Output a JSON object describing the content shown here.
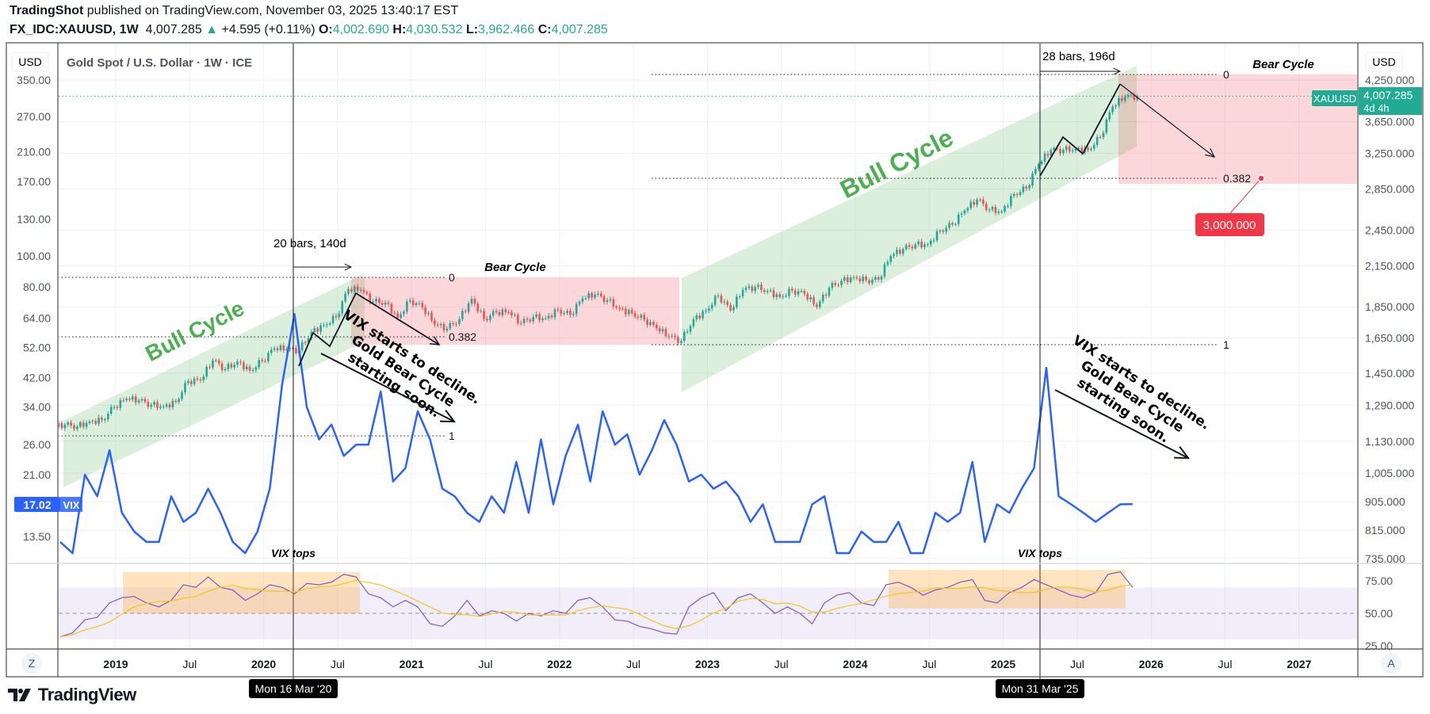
{
  "header": {
    "publisher": "TradingShot",
    "published_text": "published on TradingView.com, November 03, 2025 13:40:17 EST",
    "symbol": "FX_IDC:XAUUSD, 1W",
    "last": "4,007.285",
    "change": "+4.595 (+0.11%)",
    "o_label": "O:",
    "o": "4,002.690",
    "h_label": "H:",
    "h": "4,030.532",
    "l_label": "L:",
    "l": "3,962.466",
    "c_label": "C:",
    "c": "4,007.285"
  },
  "pane": {
    "title": "Gold Spot / U.S. Dollar · 1W · ICE",
    "currency_left": "USD",
    "currency_right": "USD"
  },
  "price_label": {
    "symbol": "XAUUSD",
    "value": "4,007.285",
    "countdown": "4d 4h"
  },
  "vix_label": {
    "value": "17.02",
    "name": "VIX"
  },
  "target_label": "3,000.000",
  "crosshair_dates": [
    "Mon 16 Mar '20",
    "Mon 31 Mar '25"
  ],
  "annotations": {
    "bull_cycle": "Bull Cycle",
    "bear_cycle": "Bear Cycle",
    "vix_tops": "VIX tops",
    "bars_1": "20 bars, 140d",
    "bars_2": "28 bars, 196d",
    "vix_note": [
      "VIX starts to decline.",
      "Gold Bear Cycle",
      "starting soon."
    ],
    "fib_levels": [
      "0",
      "0.382",
      "1"
    ]
  },
  "buttons": {
    "z": "Z",
    "a": "A"
  },
  "footer": {
    "brand": "TradingView"
  },
  "colors": {
    "up": "#26a69a",
    "down": "#ef5350",
    "vix": "#2962ff",
    "rsi": "#7e57c2",
    "rsi_ma": "#f5c518",
    "bull_zone": "#4caf50",
    "bear_zone": "#f23645",
    "price_tag": "#22ab94",
    "target_tag": "#f23645"
  },
  "chart_data": {
    "type": "line",
    "gold_style": "candlestick",
    "x": [
      "2018-08",
      "2018-09",
      "2018-10",
      "2018-11",
      "2018-12",
      "2019-01",
      "2019-02",
      "2019-03",
      "2019-04",
      "2019-05",
      "2019-06",
      "2019-07",
      "2019-08",
      "2019-09",
      "2019-10",
      "2019-11",
      "2019-12",
      "2020-01",
      "2020-02",
      "2020-03",
      "2020-04",
      "2020-05",
      "2020-06",
      "2020-07",
      "2020-08",
      "2020-09",
      "2020-10",
      "2020-11",
      "2020-12",
      "2021-01",
      "2021-02",
      "2021-03",
      "2021-04",
      "2021-05",
      "2021-06",
      "2021-07",
      "2021-08",
      "2021-09",
      "2021-10",
      "2021-11",
      "2021-12",
      "2022-01",
      "2022-02",
      "2022-03",
      "2022-04",
      "2022-05",
      "2022-06",
      "2022-07",
      "2022-08",
      "2022-09",
      "2022-10",
      "2022-11",
      "2022-12",
      "2023-01",
      "2023-02",
      "2023-03",
      "2023-04",
      "2023-05",
      "2023-06",
      "2023-07",
      "2023-08",
      "2023-09",
      "2023-10",
      "2023-11",
      "2023-12",
      "2024-01",
      "2024-02",
      "2024-03",
      "2024-04",
      "2024-05",
      "2024-06",
      "2024-07",
      "2024-08",
      "2024-09",
      "2024-10",
      "2024-11",
      "2024-12",
      "2025-01",
      "2025-02",
      "2025-03",
      "2025-04",
      "2025-05",
      "2025-06",
      "2025-07",
      "2025-08",
      "2025-09",
      "2025-10",
      "2025-11"
    ],
    "series": [
      {
        "name": "XAUUSD",
        "axis": "right",
        "values": [
          1201,
          1192,
          1215,
          1222,
          1282,
          1321,
          1313,
          1292,
          1284,
          1305,
          1409,
          1413,
          1520,
          1472,
          1513,
          1464,
          1517,
          1589,
          1585,
          1577,
          1687,
          1730,
          1781,
          1975,
          1968,
          1886,
          1879,
          1776,
          1895,
          1847,
          1734,
          1708,
          1769,
          1906,
          1770,
          1814,
          1813,
          1743,
          1783,
          1774,
          1829,
          1796,
          1908,
          1937,
          1896,
          1837,
          1807,
          1765,
          1711,
          1660,
          1633,
          1768,
          1824,
          1928,
          1826,
          1969,
          1990,
          1962,
          1919,
          1965,
          1940,
          1849,
          1983,
          2036,
          2063,
          2039,
          2044,
          2230,
          2286,
          2327,
          2326,
          2447,
          2503,
          2634,
          2744,
          2643,
          2625,
          2798,
          2858,
          3124,
          3289,
          3289,
          3303,
          3290,
          3448,
          3858,
          4000,
          4007.285
        ]
      },
      {
        "name": "VIX",
        "axis": "left",
        "values": [
          13,
          12,
          21,
          18,
          25,
          16,
          14,
          13,
          13,
          18,
          15,
          16,
          19,
          16,
          13,
          12,
          14,
          19,
          40,
          66,
          34,
          27,
          30,
          24,
          26,
          26,
          38,
          20,
          22,
          33,
          27,
          19,
          18,
          16,
          15,
          18,
          16,
          23,
          16,
          27,
          17,
          24,
          30,
          20,
          33,
          26,
          28,
          21,
          25,
          31,
          26,
          20,
          21,
          19,
          20,
          18,
          15,
          17,
          13,
          13,
          13,
          17,
          18,
          12,
          12,
          14,
          13,
          13,
          15,
          12,
          12,
          16,
          15,
          16,
          23,
          13,
          17,
          16,
          19,
          22,
          45,
          18,
          17,
          16,
          15,
          16,
          17,
          17.02
        ]
      },
      {
        "axis": "rsi",
        "values": [
          32,
          35,
          45,
          47,
          58,
          62,
          63,
          58,
          55,
          60,
          72,
          70,
          78,
          70,
          68,
          60,
          65,
          72,
          70,
          65,
          73,
          72,
          74,
          80,
          78,
          65,
          62,
          55,
          60,
          55,
          42,
          40,
          48,
          60,
          48,
          52,
          50,
          44,
          50,
          48,
          52,
          50,
          60,
          62,
          55,
          45,
          44,
          40,
          38,
          35,
          34,
          55,
          62,
          66,
          52,
          62,
          65,
          58,
          50,
          55,
          50,
          42,
          58,
          64,
          66,
          58,
          56,
          72,
          74,
          70,
          64,
          68,
          70,
          74,
          76,
          60,
          58,
          66,
          70,
          76,
          72,
          68,
          64,
          62,
          66,
          80,
          82,
          70
        ]
      }
    ],
    "right_axis_ticks": [
      "4,250.000",
      "3,650.000",
      "3,250.000",
      "2,850.000",
      "2,450.000",
      "2,150.000",
      "1,850.000",
      "1,650.000",
      "1,450.000",
      "1,290.000",
      "1,130.000",
      "1,005.000",
      "905.000",
      "815.000",
      "735.000"
    ],
    "left_axis_ticks": [
      "350.00",
      "270.00",
      "210.00",
      "170.00",
      "130.00",
      "100.00",
      "80.00",
      "64.00",
      "52.00",
      "42.00",
      "34.00",
      "26.00",
      "21.00",
      "13.50"
    ],
    "rsi_axis_ticks": [
      "75.00",
      "50.00",
      "25.00"
    ],
    "x_axis_ticks": [
      "2019",
      "Jul",
      "2020",
      "Jul",
      "2021",
      "Jul",
      "2022",
      "Jul",
      "2023",
      "Jul",
      "2024",
      "Jul",
      "2025",
      "Jul",
      "2026",
      "Jul",
      "2027"
    ],
    "right_scale": "log",
    "left_scale": "log",
    "grid": true
  }
}
